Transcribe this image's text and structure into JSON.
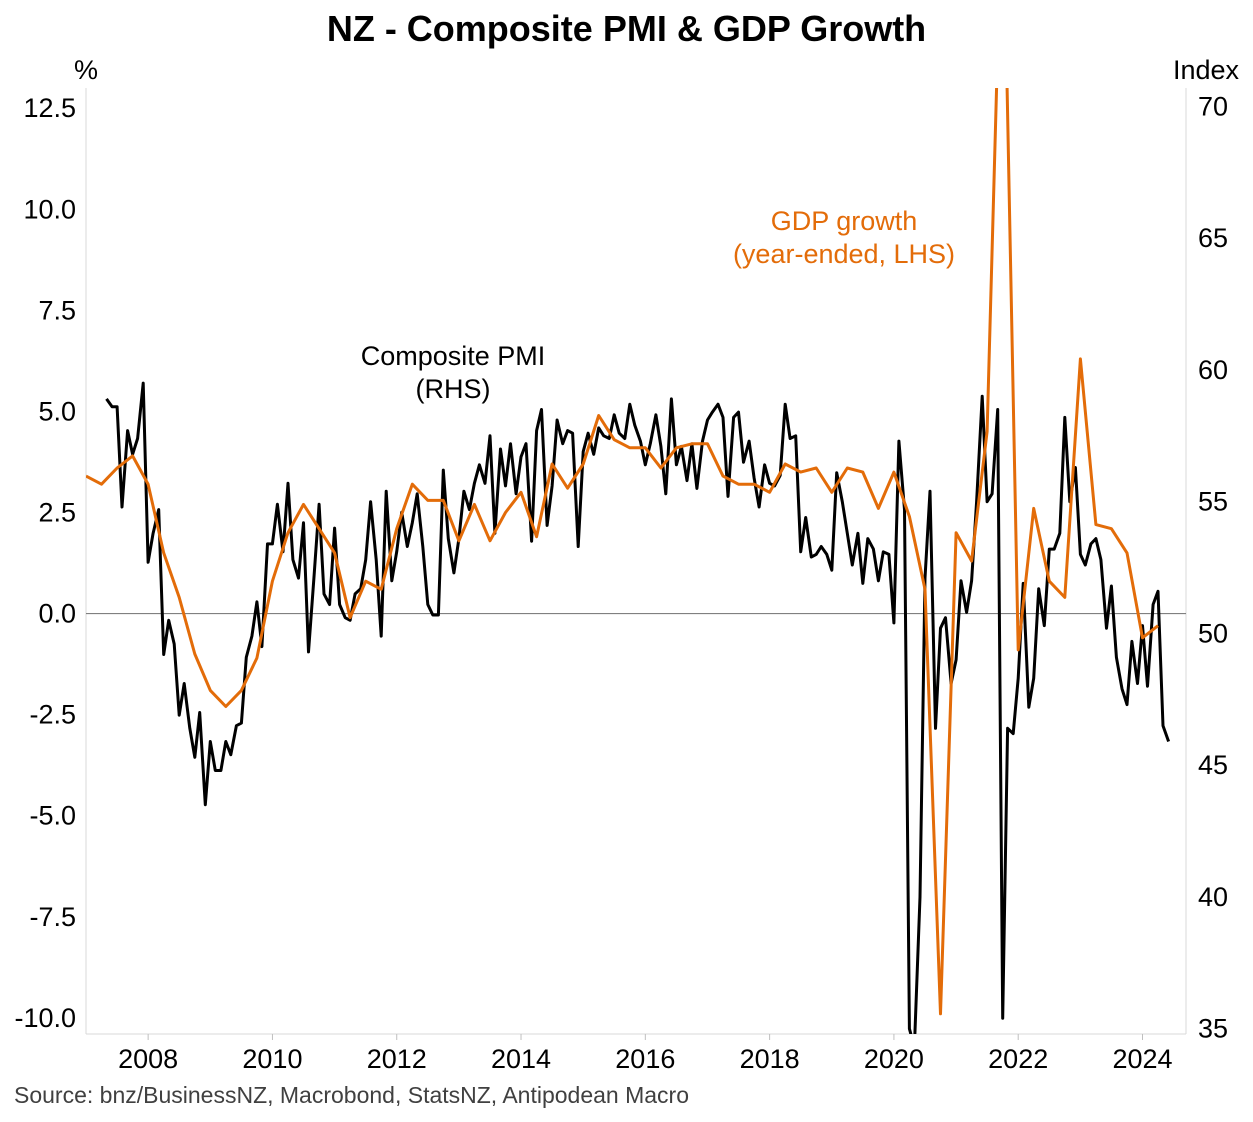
{
  "title": "NZ - Composite PMI & GDP Growth",
  "source": "Source: bnz/BusinessNZ, Macrobond, StatsNZ, Antipodean Macro",
  "colors": {
    "pmi": "#000000",
    "gdp": "#E36C09",
    "zero_line": "#808080"
  },
  "chart_data": {
    "type": "line",
    "title": "NZ - Composite PMI & GDP Growth",
    "left_axis": {
      "unit": "%",
      "ylim": [
        -10.4,
        13.0
      ],
      "ticks": [
        -10.0,
        -7.5,
        -5.0,
        -2.5,
        0.0,
        2.5,
        5.0,
        7.5,
        10.0,
        12.5
      ],
      "tick_labels": [
        "-10.0",
        "-7.5",
        "-5.0",
        "-2.5",
        "0.0",
        "2.5",
        "5.0",
        "7.5",
        "10.0",
        "12.5"
      ]
    },
    "right_axis": {
      "unit": "Index",
      "ylim": [
        34.8,
        70.7
      ],
      "ticks": [
        35,
        40,
        45,
        50,
        55,
        60,
        65,
        70
      ],
      "tick_labels": [
        "35",
        "40",
        "45",
        "50",
        "55",
        "60",
        "65",
        "70"
      ]
    },
    "x_axis": {
      "xlim": [
        2007.0,
        2024.7
      ],
      "ticks": [
        2008,
        2010,
        2012,
        2014,
        2016,
        2018,
        2020,
        2022,
        2024
      ],
      "tick_labels": [
        "2008",
        "2010",
        "2012",
        "2014",
        "2016",
        "2018",
        "2020",
        "2022",
        "2024"
      ]
    },
    "grid": false,
    "annotations": [
      {
        "text_lines": [
          "Composite PMI",
          "(RHS)"
        ],
        "color": "#000000"
      },
      {
        "text_lines": [
          "GDP growth",
          "(year-ended, LHS)"
        ],
        "color": "#E36C09"
      }
    ],
    "series": [
      {
        "name": "GDP growth (year-ended, LHS)",
        "axis": "left",
        "points": [
          [
            2007.0,
            3.4
          ],
          [
            2007.25,
            3.2
          ],
          [
            2007.5,
            3.6
          ],
          [
            2007.75,
            3.9
          ],
          [
            2008.0,
            3.2
          ],
          [
            2008.25,
            1.5
          ],
          [
            2008.5,
            0.4
          ],
          [
            2008.75,
            -1.0
          ],
          [
            2009.0,
            -1.9
          ],
          [
            2009.25,
            -2.3
          ],
          [
            2009.5,
            -1.9
          ],
          [
            2009.75,
            -1.1
          ],
          [
            2010.0,
            0.8
          ],
          [
            2010.25,
            2.0
          ],
          [
            2010.5,
            2.7
          ],
          [
            2010.75,
            2.1
          ],
          [
            2011.0,
            1.5
          ],
          [
            2011.25,
            -0.1
          ],
          [
            2011.5,
            0.8
          ],
          [
            2011.75,
            0.6
          ],
          [
            2012.0,
            2.1
          ],
          [
            2012.25,
            3.2
          ],
          [
            2012.5,
            2.8
          ],
          [
            2012.75,
            2.8
          ],
          [
            2013.0,
            1.8
          ],
          [
            2013.25,
            2.7
          ],
          [
            2013.5,
            1.8
          ],
          [
            2013.75,
            2.5
          ],
          [
            2014.0,
            3.0
          ],
          [
            2014.25,
            1.9
          ],
          [
            2014.5,
            3.7
          ],
          [
            2014.75,
            3.1
          ],
          [
            2015.0,
            3.7
          ],
          [
            2015.25,
            4.9
          ],
          [
            2015.5,
            4.3
          ],
          [
            2015.75,
            4.1
          ],
          [
            2016.0,
            4.1
          ],
          [
            2016.25,
            3.6
          ],
          [
            2016.5,
            4.1
          ],
          [
            2016.75,
            4.2
          ],
          [
            2017.0,
            4.2
          ],
          [
            2017.25,
            3.4
          ],
          [
            2017.5,
            3.2
          ],
          [
            2017.75,
            3.2
          ],
          [
            2018.0,
            3.0
          ],
          [
            2018.25,
            3.7
          ],
          [
            2018.5,
            3.5
          ],
          [
            2018.75,
            3.6
          ],
          [
            2019.0,
            3.0
          ],
          [
            2019.25,
            3.6
          ],
          [
            2019.5,
            3.5
          ],
          [
            2019.75,
            2.6
          ],
          [
            2020.0,
            3.5
          ],
          [
            2020.25,
            2.4
          ],
          [
            2020.5,
            0.6
          ],
          [
            2020.75,
            -9.9
          ],
          [
            2021.0,
            2.0
          ],
          [
            2021.25,
            1.3
          ],
          [
            2021.5,
            4.5
          ],
          [
            2021.75,
            18.5
          ],
          [
            2022.0,
            -0.9
          ],
          [
            2022.25,
            2.6
          ],
          [
            2022.5,
            0.8
          ],
          [
            2022.75,
            0.4
          ],
          [
            2023.0,
            6.3
          ],
          [
            2023.25,
            2.2
          ],
          [
            2023.5,
            2.1
          ],
          [
            2023.75,
            1.5
          ],
          [
            2024.0,
            -0.6
          ],
          [
            2024.25,
            -0.3
          ]
        ]
      },
      {
        "name": "Composite PMI (RHS)",
        "axis": "right",
        "points": [
          [
            2007.33,
            58.9
          ],
          [
            2007.42,
            58.6
          ],
          [
            2007.5,
            58.6
          ],
          [
            2007.58,
            54.8
          ],
          [
            2007.67,
            57.7
          ],
          [
            2007.75,
            56.8
          ],
          [
            2007.83,
            57.4
          ],
          [
            2007.92,
            59.5
          ],
          [
            2008.0,
            52.7
          ],
          [
            2008.08,
            53.8
          ],
          [
            2008.17,
            54.7
          ],
          [
            2008.25,
            49.2
          ],
          [
            2008.33,
            50.5
          ],
          [
            2008.42,
            49.6
          ],
          [
            2008.5,
            46.9
          ],
          [
            2008.58,
            48.1
          ],
          [
            2008.67,
            46.4
          ],
          [
            2008.75,
            45.3
          ],
          [
            2008.83,
            47.0
          ],
          [
            2008.92,
            43.5
          ],
          [
            2009.0,
            45.9
          ],
          [
            2009.08,
            44.8
          ],
          [
            2009.17,
            44.8
          ],
          [
            2009.25,
            45.9
          ],
          [
            2009.33,
            45.4
          ],
          [
            2009.42,
            46.5
          ],
          [
            2009.5,
            46.6
          ],
          [
            2009.58,
            49.1
          ],
          [
            2009.67,
            49.9
          ],
          [
            2009.75,
            51.2
          ],
          [
            2009.83,
            49.5
          ],
          [
            2009.92,
            53.4
          ],
          [
            2010.0,
            53.4
          ],
          [
            2010.08,
            54.9
          ],
          [
            2010.17,
            53.1
          ],
          [
            2010.25,
            55.7
          ],
          [
            2010.33,
            52.8
          ],
          [
            2010.42,
            52.1
          ],
          [
            2010.5,
            54.2
          ],
          [
            2010.58,
            49.3
          ],
          [
            2010.67,
            52.2
          ],
          [
            2010.75,
            54.9
          ],
          [
            2010.83,
            51.5
          ],
          [
            2010.92,
            51.1
          ],
          [
            2011.0,
            54.0
          ],
          [
            2011.08,
            51.1
          ],
          [
            2011.17,
            50.6
          ],
          [
            2011.25,
            50.5
          ],
          [
            2011.33,
            51.5
          ],
          [
            2011.42,
            51.7
          ],
          [
            2011.5,
            52.8
          ],
          [
            2011.58,
            55.0
          ],
          [
            2011.67,
            52.8
          ],
          [
            2011.75,
            49.9
          ],
          [
            2011.83,
            55.4
          ],
          [
            2011.92,
            52.0
          ],
          [
            2012.0,
            53.1
          ],
          [
            2012.08,
            54.6
          ],
          [
            2012.17,
            53.3
          ],
          [
            2012.25,
            54.2
          ],
          [
            2012.33,
            55.3
          ],
          [
            2012.42,
            53.3
          ],
          [
            2012.5,
            51.1
          ],
          [
            2012.58,
            50.7
          ],
          [
            2012.67,
            50.7
          ],
          [
            2012.75,
            56.2
          ],
          [
            2012.83,
            53.6
          ],
          [
            2012.92,
            52.3
          ],
          [
            2013.0,
            53.6
          ],
          [
            2013.08,
            55.4
          ],
          [
            2013.17,
            54.7
          ],
          [
            2013.25,
            55.7
          ],
          [
            2013.33,
            56.4
          ],
          [
            2013.42,
            55.7
          ],
          [
            2013.5,
            57.5
          ],
          [
            2013.58,
            53.8
          ],
          [
            2013.67,
            57.0
          ],
          [
            2013.75,
            55.6
          ],
          [
            2013.83,
            57.2
          ],
          [
            2013.92,
            55.3
          ],
          [
            2014.0,
            56.7
          ],
          [
            2014.08,
            57.2
          ],
          [
            2014.17,
            53.5
          ],
          [
            2014.25,
            57.7
          ],
          [
            2014.33,
            58.5
          ],
          [
            2014.42,
            54.1
          ],
          [
            2014.5,
            55.6
          ],
          [
            2014.58,
            58.1
          ],
          [
            2014.67,
            57.2
          ],
          [
            2014.75,
            57.7
          ],
          [
            2014.83,
            57.6
          ],
          [
            2014.92,
            53.3
          ],
          [
            2015.0,
            56.9
          ],
          [
            2015.08,
            57.6
          ],
          [
            2015.17,
            56.8
          ],
          [
            2015.25,
            57.8
          ],
          [
            2015.33,
            57.5
          ],
          [
            2015.42,
            57.4
          ],
          [
            2015.5,
            58.3
          ],
          [
            2015.58,
            57.6
          ],
          [
            2015.67,
            57.4
          ],
          [
            2015.75,
            58.7
          ],
          [
            2015.83,
            57.9
          ],
          [
            2015.92,
            57.3
          ],
          [
            2016.0,
            56.4
          ],
          [
            2016.08,
            57.2
          ],
          [
            2016.17,
            58.3
          ],
          [
            2016.25,
            57.1
          ],
          [
            2016.33,
            55.3
          ],
          [
            2016.42,
            58.9
          ],
          [
            2016.5,
            56.4
          ],
          [
            2016.58,
            57.1
          ],
          [
            2016.67,
            55.8
          ],
          [
            2016.75,
            57.2
          ],
          [
            2016.83,
            55.5
          ],
          [
            2016.92,
            57.3
          ],
          [
            2017.0,
            58.1
          ],
          [
            2017.08,
            58.4
          ],
          [
            2017.17,
            58.7
          ],
          [
            2017.25,
            58.2
          ],
          [
            2017.33,
            55.2
          ],
          [
            2017.42,
            58.2
          ],
          [
            2017.5,
            58.4
          ],
          [
            2017.58,
            56.5
          ],
          [
            2017.67,
            57.3
          ],
          [
            2017.75,
            55.9
          ],
          [
            2017.83,
            54.8
          ],
          [
            2017.92,
            56.4
          ],
          [
            2018.0,
            55.7
          ],
          [
            2018.08,
            55.6
          ],
          [
            2018.17,
            56.0
          ],
          [
            2018.25,
            58.7
          ],
          [
            2018.33,
            57.4
          ],
          [
            2018.42,
            57.5
          ],
          [
            2018.5,
            53.1
          ],
          [
            2018.58,
            54.4
          ],
          [
            2018.67,
            52.9
          ],
          [
            2018.75,
            53.0
          ],
          [
            2018.83,
            53.3
          ],
          [
            2018.92,
            53.0
          ],
          [
            2019.0,
            52.4
          ],
          [
            2019.08,
            56.1
          ],
          [
            2019.17,
            55.0
          ],
          [
            2019.25,
            53.8
          ],
          [
            2019.33,
            52.6
          ],
          [
            2019.42,
            53.8
          ],
          [
            2019.5,
            51.9
          ],
          [
            2019.58,
            53.6
          ],
          [
            2019.67,
            53.2
          ],
          [
            2019.75,
            52.0
          ],
          [
            2019.83,
            53.1
          ],
          [
            2019.92,
            53.0
          ],
          [
            2020.0,
            50.4
          ],
          [
            2020.08,
            57.3
          ],
          [
            2020.17,
            54.7
          ],
          [
            2020.25,
            35.0
          ],
          [
            2020.33,
            34.3
          ],
          [
            2020.42,
            40.0
          ],
          [
            2020.5,
            52.1
          ],
          [
            2020.58,
            55.4
          ],
          [
            2020.67,
            46.4
          ],
          [
            2020.75,
            50.2
          ],
          [
            2020.83,
            50.6
          ],
          [
            2020.92,
            48.1
          ],
          [
            2021.0,
            49.0
          ],
          [
            2021.08,
            52.0
          ],
          [
            2021.17,
            50.8
          ],
          [
            2021.25,
            52.0
          ],
          [
            2021.33,
            55.0
          ],
          [
            2021.42,
            59.0
          ],
          [
            2021.5,
            55.0
          ],
          [
            2021.58,
            55.3
          ],
          [
            2021.67,
            58.5
          ],
          [
            2021.75,
            35.4
          ],
          [
            2021.83,
            46.4
          ],
          [
            2021.92,
            46.2
          ],
          [
            2022.0,
            48.3
          ],
          [
            2022.08,
            51.9
          ],
          [
            2022.17,
            47.2
          ],
          [
            2022.25,
            48.3
          ],
          [
            2022.33,
            51.7
          ],
          [
            2022.42,
            50.3
          ],
          [
            2022.5,
            53.2
          ],
          [
            2022.58,
            53.2
          ],
          [
            2022.67,
            53.8
          ],
          [
            2022.75,
            58.2
          ],
          [
            2022.83,
            55.0
          ],
          [
            2022.92,
            56.3
          ],
          [
            2023.0,
            53.0
          ],
          [
            2023.08,
            52.6
          ],
          [
            2023.17,
            53.4
          ],
          [
            2023.25,
            53.6
          ],
          [
            2023.33,
            52.8
          ],
          [
            2023.42,
            50.2
          ],
          [
            2023.5,
            51.8
          ],
          [
            2023.58,
            49.1
          ],
          [
            2023.67,
            47.9
          ],
          [
            2023.75,
            47.3
          ],
          [
            2023.83,
            49.7
          ],
          [
            2023.92,
            48.1
          ],
          [
            2024.0,
            50.3
          ],
          [
            2024.08,
            48.0
          ],
          [
            2024.17,
            51.1
          ],
          [
            2024.25,
            51.6
          ],
          [
            2024.33,
            46.5
          ],
          [
            2024.42,
            45.9
          ]
        ]
      }
    ]
  }
}
